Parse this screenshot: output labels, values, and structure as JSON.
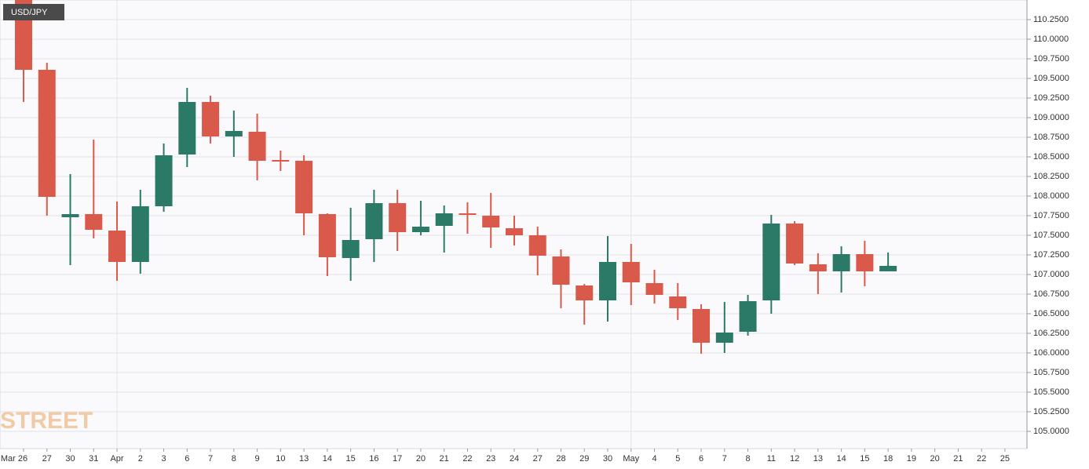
{
  "chart_data": {
    "type": "candlestick",
    "title": "USD/JPY",
    "watermark": "FXSTREET",
    "categories": [
      "Mar 26",
      "27",
      "30",
      "31",
      "Apr",
      "2",
      "3",
      "6",
      "7",
      "8",
      "9",
      "10",
      "13",
      "14",
      "15",
      "16",
      "17",
      "20",
      "21",
      "22",
      "23",
      "24",
      "27",
      "28",
      "29",
      "30",
      "May",
      "4",
      "5",
      "6",
      "7",
      "8",
      "11",
      "12",
      "13",
      "14",
      "15",
      "18",
      "19",
      "20",
      "21",
      "22",
      "25"
    ],
    "open": [
      110.55,
      109.61,
      107.73,
      107.77,
      107.56,
      107.16,
      107.87,
      108.53,
      109.2,
      108.76,
      108.82,
      108.46,
      108.45,
      107.77,
      107.21,
      107.45,
      107.91,
      107.54,
      107.62,
      107.78,
      107.75,
      107.59,
      107.5,
      107.23,
      106.86,
      106.67,
      107.16,
      106.89,
      106.72,
      106.56,
      106.13,
      106.27,
      106.67,
      107.65,
      107.13,
      107.04,
      107.26,
      107.04,
      null,
      null,
      null,
      null,
      null
    ],
    "high": [
      110.6,
      109.7,
      108.28,
      108.72,
      107.93,
      108.08,
      108.67,
      109.38,
      109.28,
      109.09,
      109.05,
      108.58,
      108.52,
      107.78,
      107.85,
      108.08,
      108.08,
      107.94,
      107.88,
      107.92,
      108.04,
      107.75,
      107.61,
      107.32,
      106.88,
      107.49,
      107.39,
      107.06,
      106.89,
      106.62,
      106.65,
      106.74,
      107.76,
      107.68,
      107.27,
      107.36,
      107.43,
      107.28,
      null,
      null,
      null,
      null,
      null
    ],
    "low": [
      109.2,
      107.75,
      107.12,
      107.46,
      106.92,
      107.01,
      107.8,
      108.37,
      108.67,
      108.5,
      108.2,
      108.32,
      107.5,
      106.98,
      106.92,
      107.16,
      107.3,
      107.5,
      107.28,
      107.52,
      107.34,
      107.37,
      106.99,
      106.57,
      106.36,
      106.4,
      106.61,
      106.63,
      106.42,
      105.99,
      106.0,
      106.22,
      106.5,
      107.12,
      106.75,
      106.77,
      106.85,
      107.04,
      null,
      null,
      null,
      null,
      null
    ],
    "close": [
      109.61,
      107.99,
      107.77,
      107.57,
      107.16,
      107.87,
      108.52,
      109.2,
      108.76,
      108.83,
      108.45,
      108.45,
      107.78,
      107.22,
      107.44,
      107.91,
      107.54,
      107.61,
      107.78,
      107.76,
      107.6,
      107.5,
      107.24,
      106.87,
      106.67,
      107.16,
      106.9,
      106.74,
      106.57,
      106.13,
      106.26,
      106.66,
      107.65,
      107.14,
      107.04,
      107.26,
      107.04,
      107.11,
      null,
      null,
      null,
      null,
      null
    ],
    "up_color": "#2b7a68",
    "down_color": "#d9594a",
    "ylim": [
      104.78,
      110.5
    ],
    "yticks": [
      {
        "value": 105,
        "label": "105.0000"
      },
      {
        "value": 105.25,
        "label": "105.2500"
      },
      {
        "value": 105.5,
        "label": "105.5000"
      },
      {
        "value": 105.75,
        "label": "105.7500"
      },
      {
        "value": 106,
        "label": "106.0000"
      },
      {
        "value": 106.25,
        "label": "106.2500"
      },
      {
        "value": 106.5,
        "label": "106.5000"
      },
      {
        "value": 106.75,
        "label": "106.7500"
      },
      {
        "value": 107,
        "label": "107.0000"
      },
      {
        "value": 107.25,
        "label": "107.2500"
      },
      {
        "value": 107.5,
        "label": "107.5000"
      },
      {
        "value": 107.75,
        "label": "107.7500"
      },
      {
        "value": 108,
        "label": "108.0000"
      },
      {
        "value": 108.25,
        "label": "108.2500"
      },
      {
        "value": 108.5,
        "label": "108.5000"
      },
      {
        "value": 108.75,
        "label": "108.7500"
      },
      {
        "value": 109,
        "label": "109.0000"
      },
      {
        "value": 109.25,
        "label": "109.2500"
      },
      {
        "value": 109.5,
        "label": "109.5000"
      },
      {
        "value": 109.75,
        "label": "109.7500"
      },
      {
        "value": 110,
        "label": "110.0000"
      },
      {
        "value": 110.25,
        "label": "110.2500"
      }
    ],
    "grid": true
  }
}
